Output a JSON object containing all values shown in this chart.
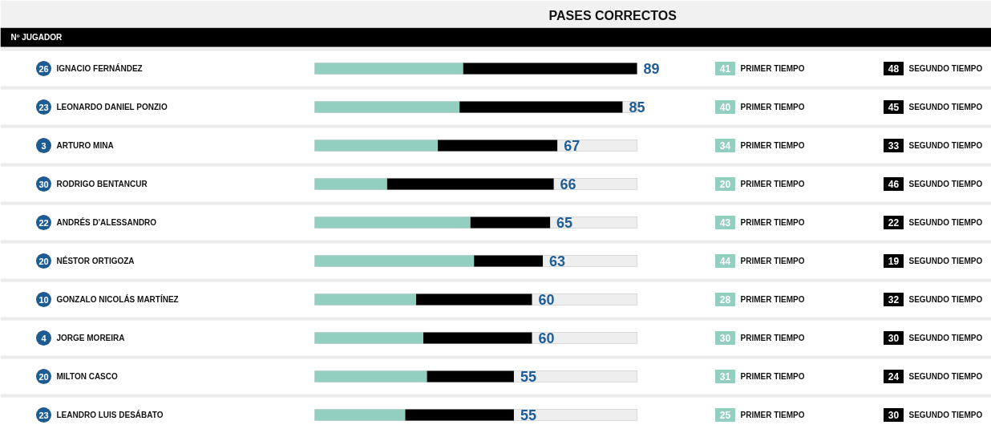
{
  "chart_data": {
    "type": "bar",
    "orientation": "horizontal",
    "stacked": true,
    "title": "PASES CORRECTOS",
    "ylabel": "Nº JUGADOR",
    "categories": [
      "IGNACIO FERNÁNDEZ",
      "LEONARDO DANIEL PONZIO",
      "ARTURO MINA",
      "RODRIGO BENTANCUR",
      "ANDRÉS D'ALESSANDRO",
      "NÉSTOR ORTIGOZA",
      "GONZALO NICOLÁS MARTÍNEZ",
      "JORGE MOREIRA",
      "MILTON CASCO",
      "LEANDRO LUIS DESÁBATO"
    ],
    "series": [
      {
        "name": "PRIMER TIEMPO",
        "color": "#93cfc1",
        "values": [
          41,
          40,
          34,
          20,
          43,
          44,
          28,
          30,
          31,
          25
        ]
      },
      {
        "name": "SEGUNDO TIEMPO",
        "color": "#000000",
        "values": [
          48,
          45,
          33,
          46,
          22,
          19,
          32,
          30,
          24,
          30
        ]
      }
    ],
    "totals": [
      "89",
      "85",
      "67",
      "66",
      "65",
      "63",
      "60",
      "60",
      "55",
      "55"
    ],
    "data_labels": true,
    "legend": "right",
    "annotations": [
      "26",
      "23",
      "3",
      "30",
      "22",
      "20",
      "10",
      "4",
      "20",
      "23"
    ]
  }
}
